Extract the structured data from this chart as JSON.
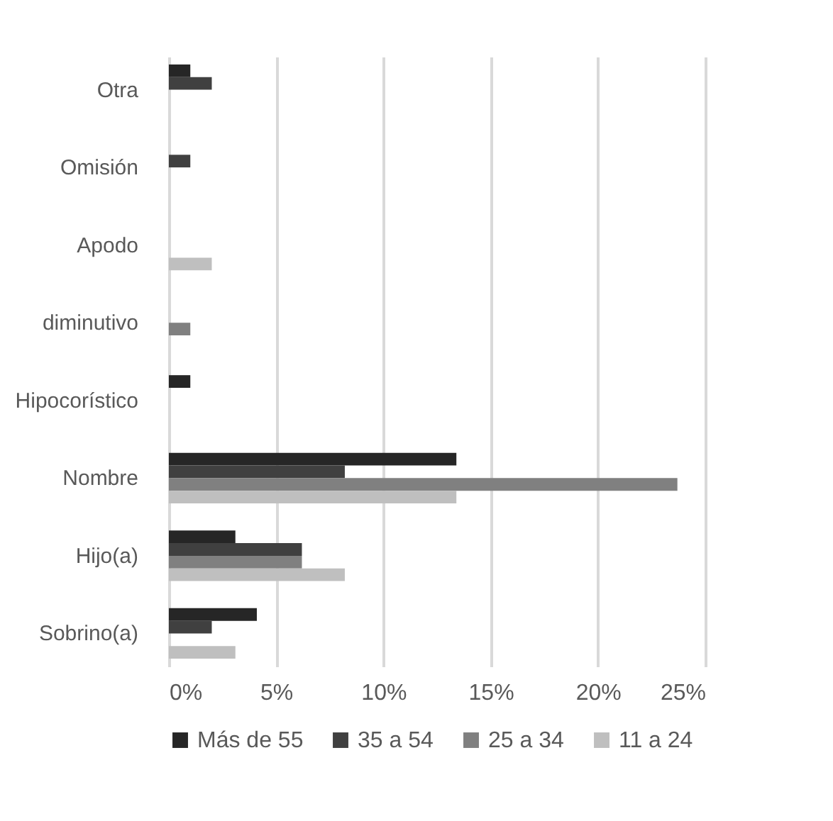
{
  "chart_data": {
    "type": "bar",
    "orientation": "horizontal",
    "categories": [
      "Otra",
      "Omisión",
      "Apodo",
      "diminutivo",
      "Hipocorístico",
      "Nombre",
      "Hijo(a)",
      "Sobrino(a)"
    ],
    "series": [
      {
        "name": "Más de 55",
        "color": "#262626",
        "values": [
          1.0,
          null,
          null,
          null,
          1.0,
          13.4,
          3.1,
          4.1
        ]
      },
      {
        "name": "35 a 54",
        "color": "#404040",
        "values": [
          2.0,
          1.0,
          null,
          null,
          null,
          8.2,
          6.2,
          2.0
        ]
      },
      {
        "name": "25 a 34",
        "color": "#808080",
        "values": [
          null,
          null,
          null,
          1.0,
          null,
          23.7,
          6.2,
          null
        ]
      },
      {
        "name": "11 a 24",
        "color": "#bfbfbf",
        "values": [
          null,
          null,
          2.0,
          null,
          null,
          13.4,
          8.2,
          3.1
        ]
      }
    ],
    "xlim": [
      0,
      25
    ],
    "xticks": [
      {
        "value": 0,
        "label": "0%"
      },
      {
        "value": 5,
        "label": "5%"
      },
      {
        "value": 10,
        "label": "10%"
      },
      {
        "value": 15,
        "label": "15%"
      },
      {
        "value": 20,
        "label": "20%"
      },
      {
        "value": 25,
        "label": "25%"
      }
    ],
    "grid": "x",
    "legend": "bottom"
  }
}
